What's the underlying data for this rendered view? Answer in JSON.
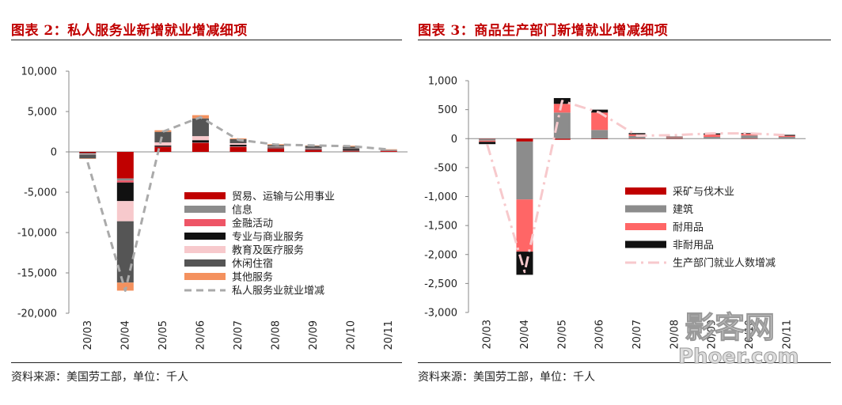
{
  "charts": [
    {
      "title": "图表 2：私人服务业新增就业增减细项",
      "source": "资料来源：美国劳工部，单位：千人"
    },
    {
      "title": "图表 3：商品生产部门新增就业增减细项",
      "source": "资料来源：美国劳工部，单位：千人"
    }
  ],
  "watermark": {
    "text_cn": "影客网",
    "text_en": "Phoer.com"
  },
  "chart_data": [
    {
      "type": "bar",
      "stacked": true,
      "title": "图表 2：私人服务业新增就业增减细项",
      "unit": "千人",
      "ylim": [
        -20000,
        10000
      ],
      "yticks": [
        10000,
        5000,
        0,
        -5000,
        -10000,
        -15000,
        -20000
      ],
      "ytick_labels": [
        "10,000",
        "5,000",
        "0",
        "-5,000",
        "-10,000",
        "-15,000",
        "-20,000"
      ],
      "categories": [
        "20/03",
        "20/04",
        "20/05",
        "20/06",
        "20/07",
        "20/08",
        "20/09",
        "20/10",
        "20/11"
      ],
      "legend_position": "lower-right",
      "series": [
        {
          "name": "贸易、运输与公用事业",
          "color": "#c00000",
          "values": [
            -100,
            -3300,
            600,
            1100,
            600,
            400,
            200,
            100,
            100
          ]
        },
        {
          "name": "信息",
          "color": "#8c8c8c",
          "values": [
            -20,
            -250,
            -20,
            0,
            50,
            20,
            0,
            10,
            0
          ]
        },
        {
          "name": "金融活动",
          "color": "#ee5566",
          "values": [
            -20,
            -250,
            30,
            50,
            30,
            30,
            50,
            50,
            20
          ]
        },
        {
          "name": "专业与商业服务",
          "color": "#111111",
          "values": [
            -80,
            -2300,
            150,
            300,
            200,
            100,
            100,
            200,
            50
          ]
        },
        {
          "name": "教育及医疗服务",
          "color": "#f7c9cc",
          "values": [
            -100,
            -2500,
            400,
            500,
            200,
            100,
            100,
            50,
            50
          ]
        },
        {
          "name": "休闲住宿",
          "color": "#555555",
          "values": [
            -500,
            -7600,
            1300,
            2200,
            500,
            200,
            300,
            250,
            50
          ]
        },
        {
          "name": "其他服务",
          "color": "#f4915e",
          "values": [
            -50,
            -1000,
            200,
            400,
            100,
            100,
            50,
            100,
            50
          ]
        }
      ],
      "line": {
        "name": "私人服务业就业增减",
        "color": "#aaaaaa",
        "style": "dashed",
        "values": [
          -1300,
          -17200,
          2500,
          4300,
          1500,
          900,
          800,
          700,
          300
        ]
      }
    },
    {
      "type": "bar",
      "stacked": true,
      "title": "图表 3：商品生产部门新增就业增减细项",
      "unit": "千人",
      "ylim": [
        -3000,
        1000
      ],
      "yticks": [
        1000,
        500,
        0,
        -500,
        -1000,
        -1500,
        -2000,
        -2500,
        -3000
      ],
      "ytick_labels": [
        "1,000",
        "500",
        "0",
        "-500",
        "-1,000",
        "-1,500",
        "-2,000",
        "-2,500",
        "-3,000"
      ],
      "categories": [
        "20/03",
        "20/04",
        "20/05",
        "20/06",
        "20/07",
        "20/08",
        "20/09",
        "20/10",
        "20/11"
      ],
      "legend_position": "lower-right",
      "series": [
        {
          "name": "采矿与伐木业",
          "color": "#c00000",
          "values": [
            -5,
            -50,
            -20,
            -10,
            5,
            -5,
            0,
            5,
            0
          ]
        },
        {
          "name": "建筑",
          "color": "#8c8c8c",
          "values": [
            -30,
            -1000,
            450,
            150,
            40,
            20,
            30,
            50,
            30
          ]
        },
        {
          "name": "耐用品",
          "color": "#ff6666",
          "values": [
            -20,
            -900,
            150,
            300,
            30,
            10,
            40,
            30,
            20
          ]
        },
        {
          "name": "非耐用品",
          "color": "#111111",
          "values": [
            -40,
            -400,
            100,
            50,
            20,
            5,
            20,
            10,
            15
          ]
        }
      ],
      "line": {
        "name": "生产部门就业人数增减",
        "color": "#f7c9cc",
        "style": "dashdot",
        "values": [
          -100,
          -2300,
          650,
          450,
          50,
          60,
          90,
          90,
          60
        ]
      }
    }
  ]
}
